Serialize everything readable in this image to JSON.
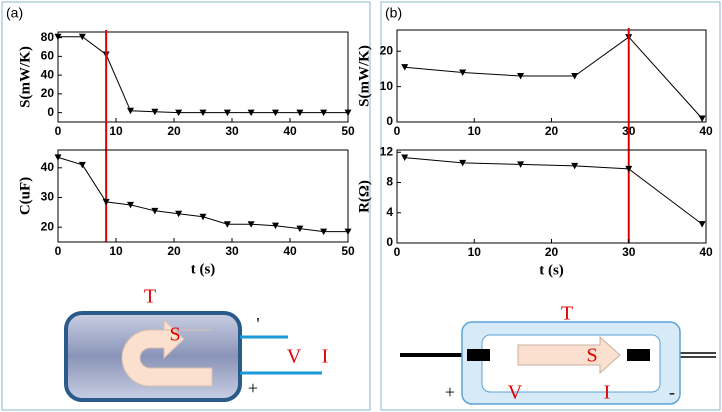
{
  "panel_labels": [
    "(a)",
    "(b)"
  ],
  "chart_data": [
    {
      "type": "line",
      "ylabel": "S(mW/K)",
      "x": [
        0,
        4.2,
        8.3,
        12.5,
        16.7,
        20.8,
        25,
        29.2,
        33.3,
        37.5,
        41.7,
        45.8,
        50
      ],
      "values": [
        81,
        81,
        62,
        2,
        1,
        0,
        0,
        0,
        0,
        0,
        0,
        0,
        0
      ],
      "color": "#000000",
      "xlim": [
        0,
        50
      ],
      "xticks": [
        0,
        10,
        20,
        30,
        40,
        50
      ],
      "ylim": [
        -10,
        86
      ],
      "yticks": [
        0,
        20,
        40,
        60,
        80
      ],
      "vline": {
        "x": 8.3,
        "color": "#e00000"
      }
    },
    {
      "type": "line",
      "xlabel": "t (s)",
      "ylabel": "C(uF)",
      "x": [
        0,
        4.2,
        8.3,
        12.5,
        16.7,
        20.8,
        25,
        29.2,
        33.3,
        37.5,
        41.7,
        45.8,
        50
      ],
      "values": [
        43.5,
        41,
        28.5,
        27.5,
        25.5,
        24.5,
        23.5,
        21,
        21,
        20.5,
        19.5,
        18.5,
        18.5
      ],
      "color": "#000000",
      "xlim": [
        0,
        50
      ],
      "xticks": [
        0,
        10,
        20,
        30,
        40,
        50
      ],
      "ylim": [
        15,
        46
      ],
      "yticks": [
        20,
        30,
        40
      ]
    },
    {
      "type": "line",
      "ylabel": "S(mW/K)",
      "x": [
        1,
        8.5,
        16,
        23,
        30,
        39.5
      ],
      "values": [
        15.5,
        14,
        13,
        13,
        24,
        1
      ],
      "color": "#000000",
      "xlim": [
        0,
        40
      ],
      "xticks": [
        0,
        10,
        20,
        30,
        40
      ],
      "ylim": [
        0,
        26
      ],
      "yticks": [
        0,
        10,
        20
      ],
      "vline": {
        "x": 30,
        "color": "#e00000"
      }
    },
    {
      "type": "line",
      "xlabel": "t (s)",
      "ylabel": "R(Ω)",
      "x": [
        1,
        8.5,
        16,
        23,
        30,
        39.5
      ],
      "values": [
        11.3,
        10.6,
        10.4,
        10.2,
        9.8,
        2.5
      ],
      "color": "#000000",
      "xlim": [
        0,
        40
      ],
      "xticks": [
        0,
        10,
        20,
        30,
        40
      ],
      "ylim": [
        0,
        12.3
      ],
      "yticks": [
        0,
        4,
        8,
        12
      ]
    }
  ],
  "diagram_a": {
    "T": "T",
    "S": "S",
    "tick": "'",
    "V": "V",
    "I": "I",
    "plus": "+"
  },
  "diagram_b": {
    "T": "T",
    "S": "S",
    "plus": "+",
    "V": "V",
    "I": "I",
    "minus": "-"
  }
}
